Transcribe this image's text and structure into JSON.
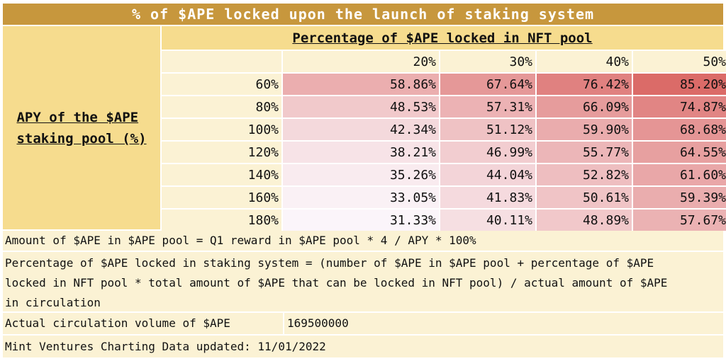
{
  "title": "% of $APE locked upon the launch of staking system",
  "row_axis_label_line1": "APY of the $APE",
  "row_axis_label_line2": "staking pool (%)",
  "column_axis_label": "Percentage of $APE locked in NFT pool",
  "table": {
    "column_headers": [
      "20%",
      "30%",
      "40%",
      "50%"
    ],
    "rows": [
      {
        "label": "60%",
        "cells": [
          "58.86%",
          "67.64%",
          "76.42%",
          "85.20%"
        ]
      },
      {
        "label": "80%",
        "cells": [
          "48.53%",
          "57.31%",
          "66.09%",
          "74.87%"
        ]
      },
      {
        "label": "100%",
        "cells": [
          "42.34%",
          "51.12%",
          "59.90%",
          "68.68%"
        ]
      },
      {
        "label": "120%",
        "cells": [
          "38.21%",
          "46.99%",
          "55.77%",
          "64.55%"
        ]
      },
      {
        "label": "140%",
        "cells": [
          "35.26%",
          "44.04%",
          "52.82%",
          "61.60%"
        ]
      },
      {
        "label": "160%",
        "cells": [
          "33.05%",
          "41.83%",
          "50.61%",
          "59.39%"
        ]
      },
      {
        "label": "180%",
        "cells": [
          "31.33%",
          "40.11%",
          "48.89%",
          "57.67%"
        ]
      }
    ],
    "heat_low_color": "#fbf5fa",
    "heat_high_color": "#db6b68"
  },
  "notes": {
    "formula_pool": "Amount of $APE in $APE pool = Q1 reward in $APE pool * 4 / APY * 100%",
    "formula_locked_line1": "Percentage of $APE locked in staking system = (number of $APE in $APE pool + percentage of $APE",
    "formula_locked_line2": "locked in NFT pool * total amount of $APE that can be locked in NFT pool) / actual amount of $APE",
    "formula_locked_line3": "in circulation",
    "circulation_label": "Actual circulation volume of $APE",
    "circulation_value": "169500000",
    "source": "Mint Ventures Charting Data updated: 11/01/2022"
  },
  "colors": {
    "title_bar": "#c7973d",
    "header_band": "#f6dc8e",
    "light_band": "#fbf2d4"
  }
}
